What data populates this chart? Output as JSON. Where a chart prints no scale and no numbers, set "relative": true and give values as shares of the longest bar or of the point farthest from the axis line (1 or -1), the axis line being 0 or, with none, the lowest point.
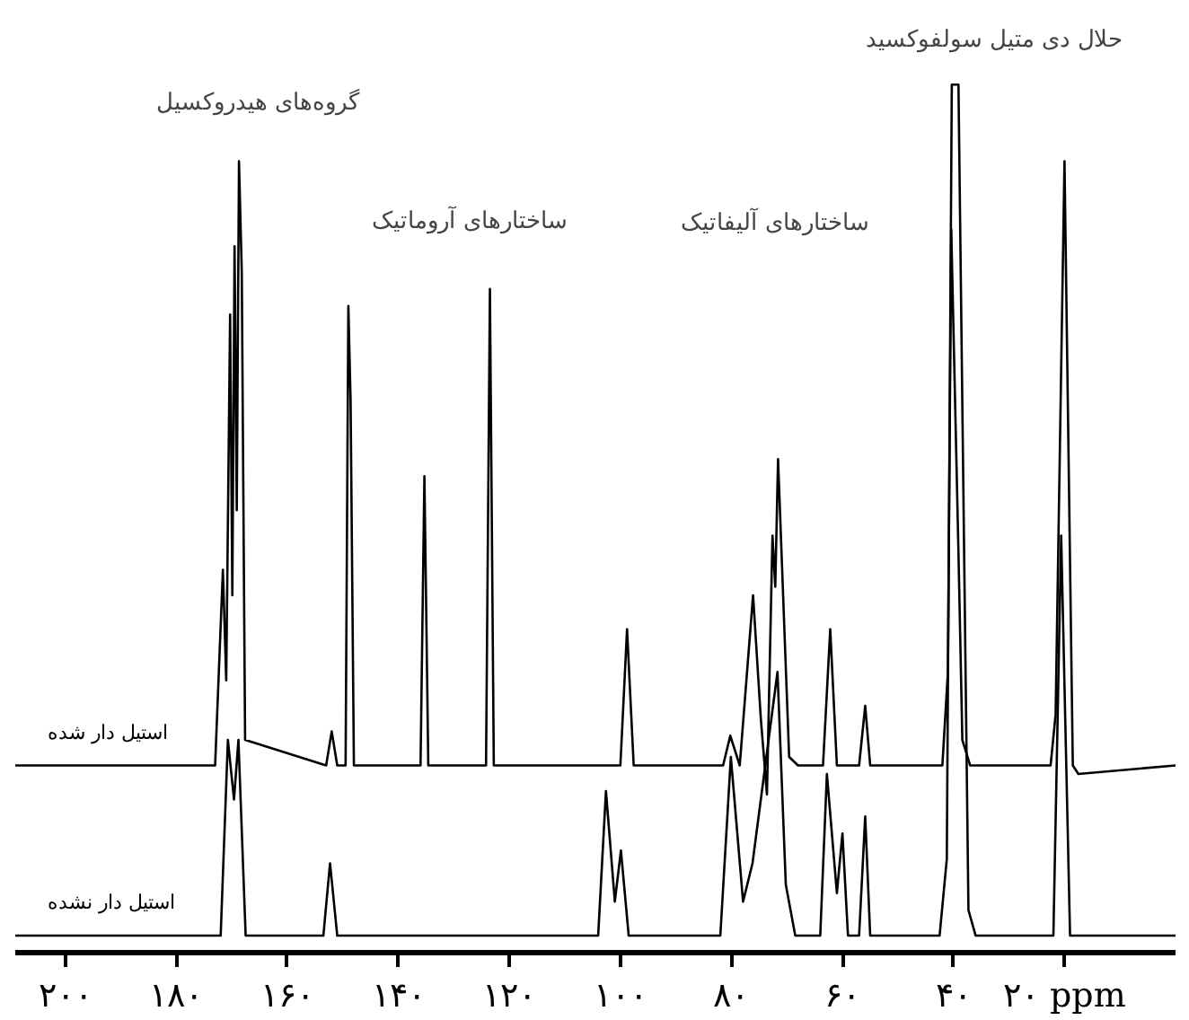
{
  "chart_data": {
    "type": "line",
    "relative": true,
    "xlim": [
      209,
      0
    ],
    "xticks": [
      {
        "value": 200,
        "label": "۲۰۰"
      },
      {
        "value": 180,
        "label": "۱۸۰"
      },
      {
        "value": 160,
        "label": "۱۶۰"
      },
      {
        "value": 140,
        "label": "۱۴۰"
      },
      {
        "value": 120,
        "label": "۱۲۰"
      },
      {
        "value": 100,
        "label": "۱۰۰"
      },
      {
        "value": 80,
        "label": "۸۰"
      },
      {
        "value": 60,
        "label": "۶۰"
      },
      {
        "value": 40,
        "label": "۴۰"
      },
      {
        "value": 20,
        "label": "۲۰ ppm"
      }
    ],
    "grid": false,
    "marker": "none",
    "line_style": "solid",
    "series": [
      {
        "name": "استیل دار شده",
        "color": "#000000",
        "x": [
          209,
          173,
          171.6,
          171,
          170.3,
          169.9,
          169.5,
          169.1,
          168.7,
          168.2,
          167.6,
          153,
          152,
          151,
          149.5,
          149,
          148.6,
          148,
          136,
          135.3,
          134.6,
          124.2,
          123.5,
          122.8,
          100,
          98.8,
          97.6,
          81.5,
          80.2,
          78.5,
          76.1,
          74.7,
          73.6,
          72.6,
          72.1,
          71.6,
          69.6,
          68,
          63.5,
          62.2,
          61,
          57,
          55.9,
          55,
          42,
          41,
          40.4,
          39.1,
          38.4,
          37,
          22.5,
          21.6,
          20,
          18.5,
          17.5,
          0
        ],
        "values": [
          0.2,
          0.2,
          0.43,
          0.3,
          0.73,
          0.4,
          0.81,
          0.5,
          0.91,
          0.78,
          0.23,
          0.2,
          0.24,
          0.2,
          0.2,
          0.74,
          0.63,
          0.2,
          0.2,
          0.54,
          0.2,
          0.2,
          0.76,
          0.2,
          0.2,
          0.36,
          0.2,
          0.2,
          0.235,
          0.2,
          0.4,
          0.255,
          0.166,
          0.47,
          0.41,
          0.56,
          0.21,
          0.2,
          0.2,
          0.36,
          0.2,
          0.2,
          0.27,
          0.2,
          0.2,
          0.31,
          0.83,
          0.45,
          0.23,
          0.2,
          0.2,
          0.26,
          0.91,
          0.2,
          0.19,
          0.2
        ]
      },
      {
        "name": "استیل دار نشده",
        "color": "#000000",
        "x": [
          209,
          172,
          170.7,
          169.6,
          168.8,
          167.5,
          153.5,
          152.3,
          151,
          104,
          102.6,
          101,
          99.9,
          98.5,
          82,
          80.1,
          77.9,
          76.2,
          71.7,
          70.2,
          68.5,
          64,
          62.8,
          61,
          60,
          59,
          57,
          55.9,
          55,
          42.5,
          41.2,
          40.3,
          39.1,
          37.3,
          36,
          22,
          20.6,
          19,
          0
        ],
        "values": [
          0,
          0,
          0.23,
          0.16,
          0.23,
          0,
          0,
          0.085,
          0,
          0,
          0.17,
          0.04,
          0.1,
          0,
          0,
          0.21,
          0.04,
          0.085,
          0.31,
          0.06,
          0,
          0,
          0.19,
          0.05,
          0.12,
          0,
          0,
          0.14,
          0,
          0,
          0.09,
          1.0,
          1.0,
          0.03,
          0,
          0,
          0.47,
          0,
          0
        ]
      }
    ],
    "annotations": [
      "گروه‌های هیدروکسیل",
      "ساختارهای آروماتیک",
      "ساختارهای آلیفاتیک",
      "حلال دی متیل سولفوکسید"
    ]
  }
}
